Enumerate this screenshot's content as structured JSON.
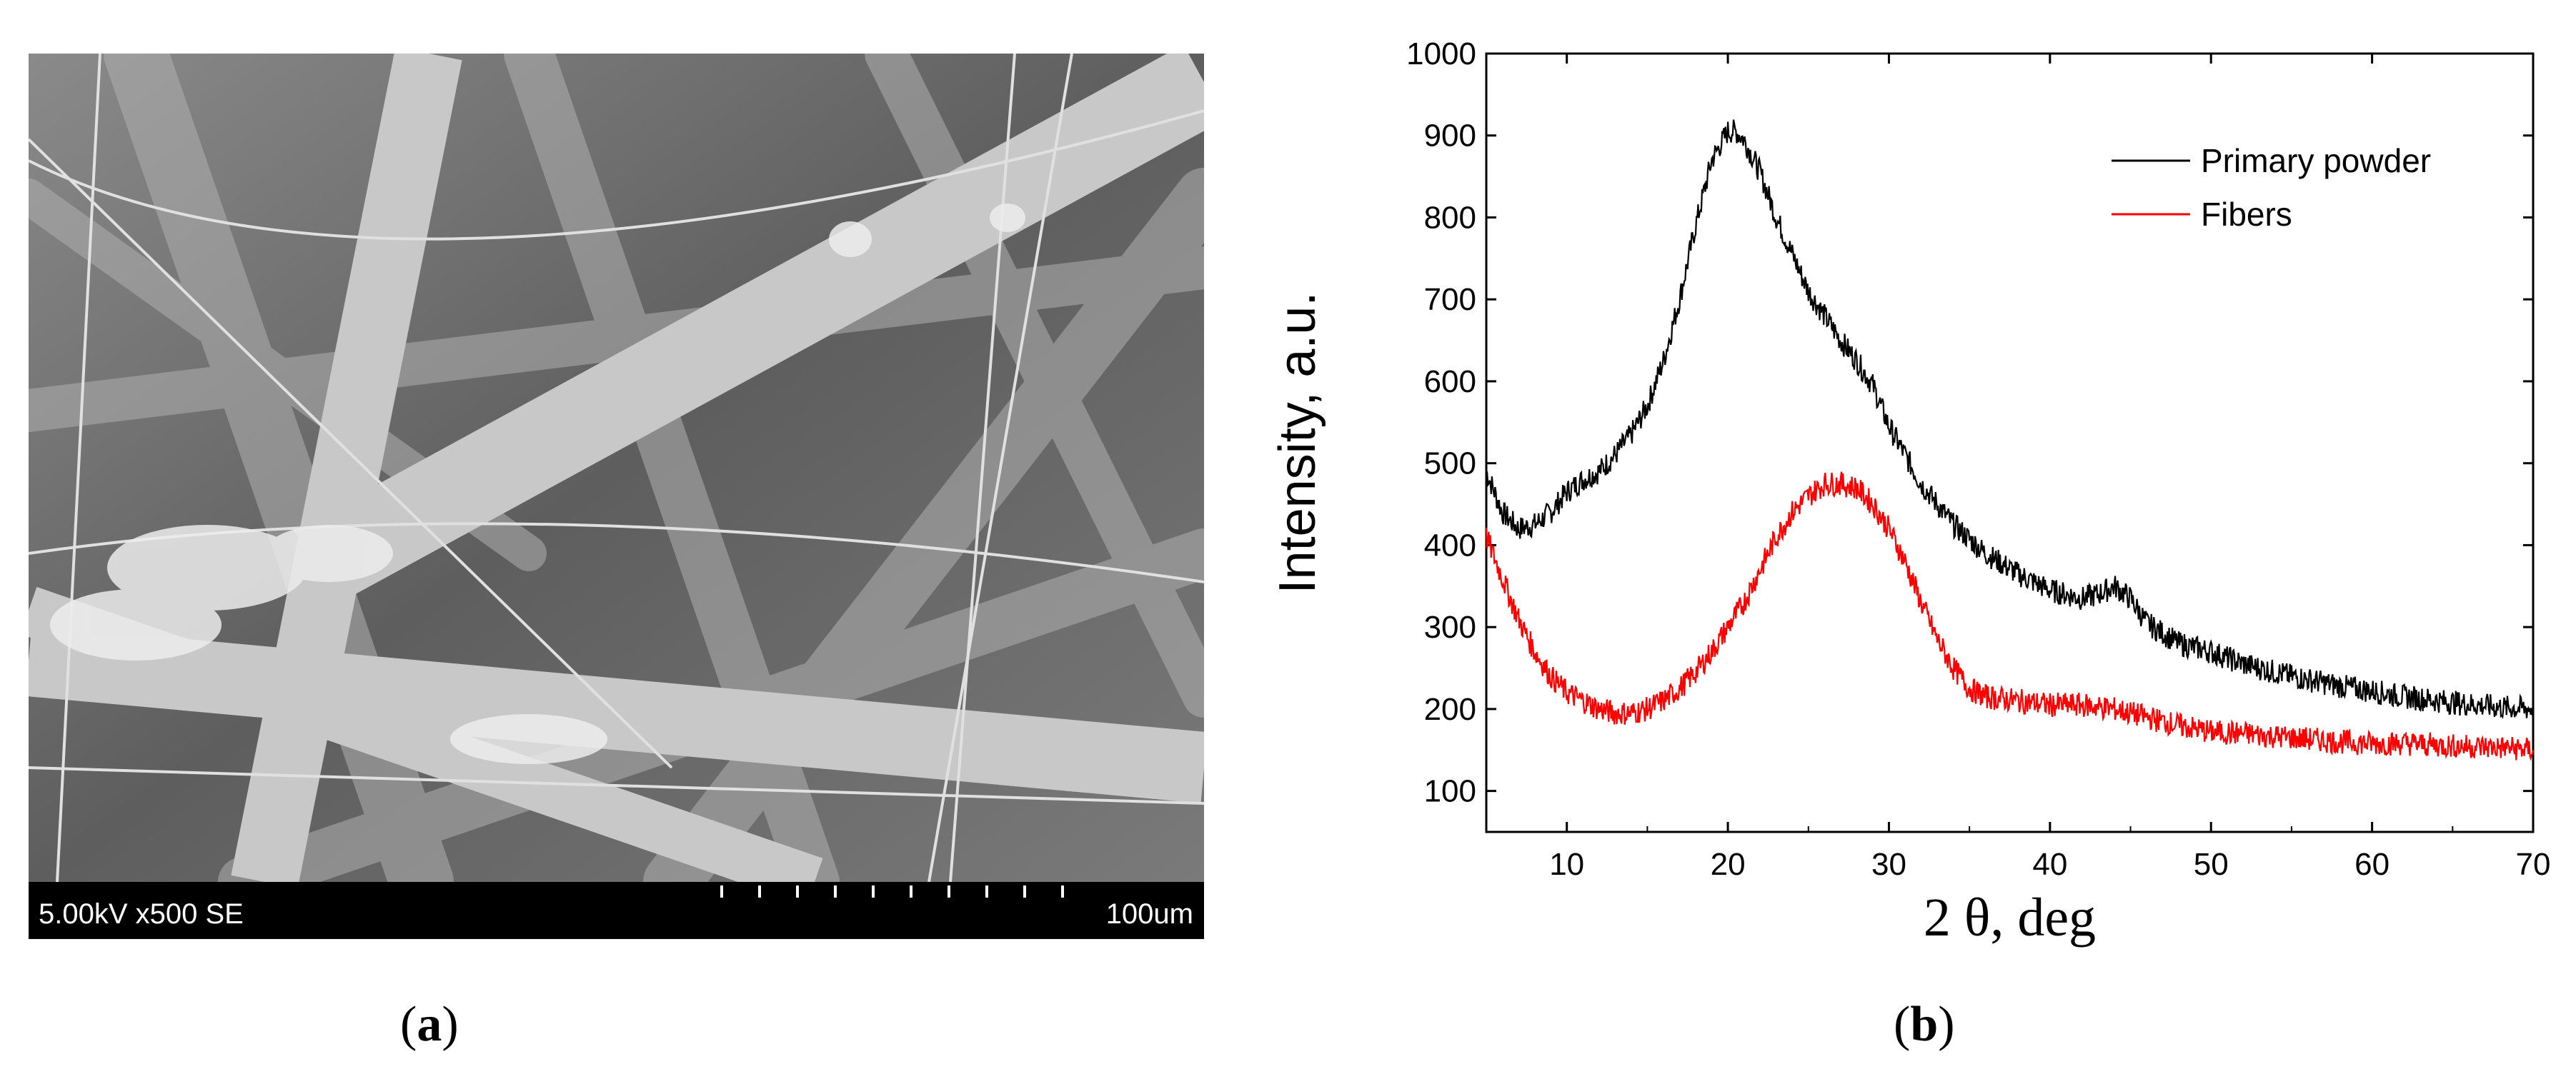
{
  "panel_a": {
    "caption_open": "(",
    "caption_letter": "a",
    "caption_close": ")",
    "scalebar_left": "5.00kV x500 SE",
    "scalebar_right": "100um"
  },
  "panel_b": {
    "caption_open": "(",
    "caption_letter": "b",
    "caption_close": ")"
  },
  "chart_data": {
    "type": "line",
    "title": "",
    "xlabel": "2 θ, deg",
    "ylabel": "Intensity, a.u.",
    "xlim": [
      5,
      70
    ],
    "ylim": [
      50,
      1000
    ],
    "xticks": [
      10,
      20,
      30,
      40,
      50,
      60,
      70
    ],
    "yticks": [
      100,
      200,
      300,
      400,
      500,
      600,
      700,
      800,
      900,
      1000
    ],
    "grid": false,
    "legend_position": "top-right",
    "colors": {
      "primary": "#000000",
      "fibers": "#ff0000"
    },
    "series": [
      {
        "name": "Primary powder",
        "color": "#000000",
        "x": [
          5,
          6,
          7,
          8,
          9,
          10,
          11,
          12,
          13,
          14,
          15,
          16,
          17,
          18,
          19,
          20,
          20.5,
          21,
          22,
          23,
          24,
          25,
          26,
          27,
          28,
          29,
          30,
          32,
          34,
          36,
          38,
          40,
          42,
          43,
          44,
          45,
          46,
          48,
          50,
          52,
          55,
          58,
          60,
          62,
          65,
          68,
          70
        ],
        "y": [
          490,
          440,
          420,
          425,
          440,
          465,
          480,
          490,
          510,
          535,
          570,
          625,
          700,
          790,
          870,
          905,
          905,
          895,
          855,
          800,
          755,
          710,
          680,
          650,
          625,
          595,
          545,
          475,
          425,
          390,
          365,
          345,
          335,
          340,
          350,
          335,
          305,
          280,
          270,
          255,
          240,
          228,
          222,
          215,
          208,
          202,
          200
        ]
      },
      {
        "name": "Fibers",
        "color": "#ff0000",
        "x": [
          5,
          6,
          7,
          8,
          9,
          10,
          11,
          12,
          13,
          14,
          15,
          16,
          17,
          18,
          19,
          20,
          21,
          22,
          23,
          24,
          25,
          26,
          27,
          28,
          29,
          30,
          31,
          32,
          33,
          34,
          35,
          36,
          38,
          40,
          42,
          44,
          46,
          48,
          50,
          52,
          55,
          58,
          60,
          62,
          65,
          68,
          70
        ],
        "y": [
          410,
          360,
          310,
          270,
          240,
          220,
          210,
          200,
          195,
          195,
          200,
          210,
          225,
          245,
          270,
          300,
          330,
          370,
          410,
          440,
          460,
          475,
          475,
          470,
          450,
          420,
          380,
          330,
          285,
          250,
          225,
          215,
          210,
          205,
          205,
          200,
          190,
          180,
          172,
          170,
          165,
          160,
          158,
          158,
          155,
          153,
          150
        ]
      }
    ]
  }
}
